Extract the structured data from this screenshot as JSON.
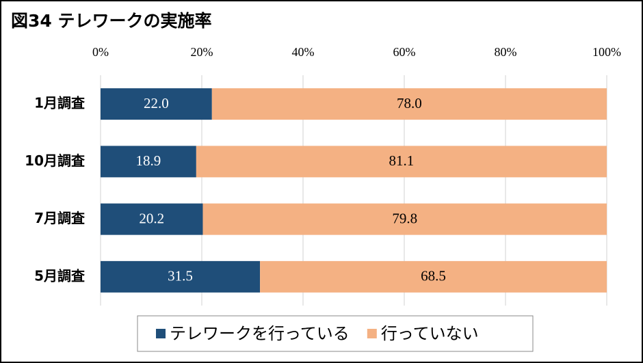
{
  "chart_data": {
    "type": "stacked-bar-horizontal",
    "title": "図34 テレワークの実施率",
    "categories": [
      "1月調査",
      "10月調査",
      "7月調査",
      "5月調査"
    ],
    "series": [
      {
        "name": "テレワークを行っている",
        "color": "#1f4e79",
        "values": [
          22.0,
          18.9,
          20.2,
          31.5
        ],
        "value_labels": [
          "22.0",
          "18.9",
          "20.2",
          "31.5"
        ]
      },
      {
        "name": "行っていない",
        "color": "#f4b183",
        "values": [
          78.0,
          81.1,
          79.8,
          68.5
        ],
        "value_labels": [
          "78.0",
          "81.1",
          "79.8",
          "68.5"
        ]
      }
    ],
    "xlim": [
      0,
      100
    ],
    "xticks": [
      {
        "value": 0,
        "label": "0%"
      },
      {
        "value": 20,
        "label": "20%"
      },
      {
        "value": 40,
        "label": "40%"
      },
      {
        "value": 60,
        "label": "60%"
      },
      {
        "value": 80,
        "label": "80%"
      },
      {
        "value": 100,
        "label": "100%"
      }
    ],
    "grid": true,
    "legend": "bottom"
  }
}
